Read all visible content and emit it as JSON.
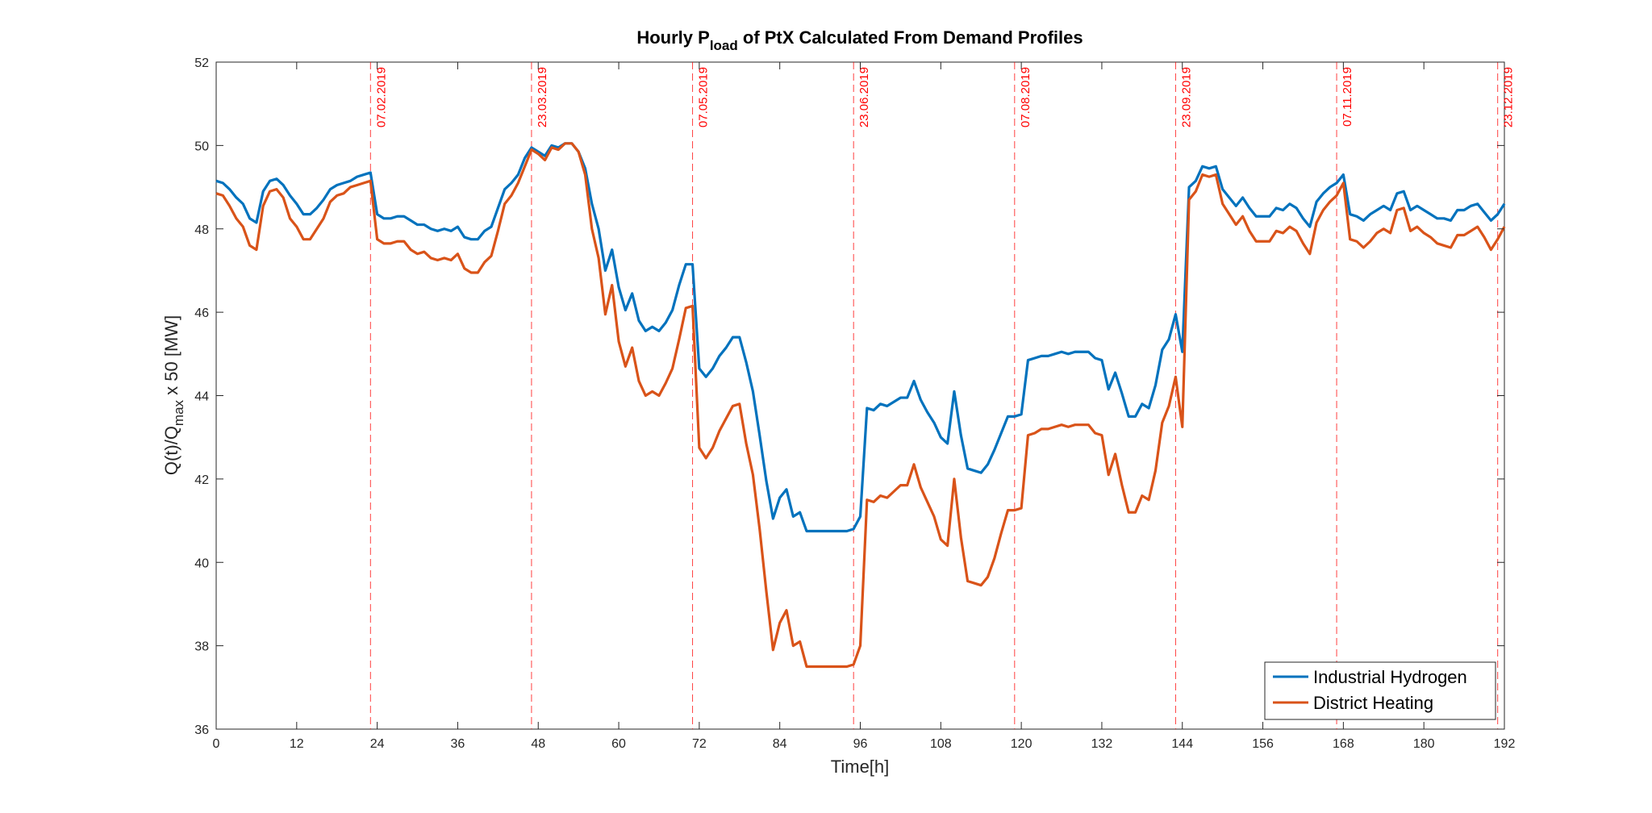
{
  "chart_data": {
    "type": "line",
    "title_main": "Hourly P",
    "title_sub": "load",
    "title_rest": " of PtX Calculated From Demand Profiles",
    "xlabel": "Time[h]",
    "ylabel_main": "Q(t)/Q",
    "ylabel_sub": "max",
    "ylabel_rest": " x 50 [MW]",
    "xlim": [
      0,
      192
    ],
    "ylim": [
      36,
      52
    ],
    "xticks": [
      0,
      12,
      24,
      36,
      48,
      60,
      72,
      84,
      96,
      108,
      120,
      132,
      144,
      156,
      168,
      180,
      192
    ],
    "yticks": [
      36,
      38,
      40,
      42,
      44,
      46,
      48,
      50,
      52
    ],
    "grid": false,
    "legend_position": "bottom-right",
    "annotations": [
      {
        "x": 23,
        "label": "07.02.2019"
      },
      {
        "x": 47,
        "label": "23.03.2019"
      },
      {
        "x": 71,
        "label": "07.05.2019"
      },
      {
        "x": 95,
        "label": "23.06.2019"
      },
      {
        "x": 119,
        "label": "07.08.2019"
      },
      {
        "x": 143,
        "label": "23.09.2019"
      },
      {
        "x": 167,
        "label": "07.11.2019"
      },
      {
        "x": 191,
        "label": "23.12.2019"
      }
    ],
    "annotation_color": "#ff0000",
    "series": [
      {
        "name": "Industrial Hydrogen",
        "color": "#0072BD",
        "x": [
          0,
          1,
          2,
          3,
          4,
          5,
          6,
          7,
          8,
          9,
          10,
          11,
          12,
          13,
          14,
          15,
          16,
          17,
          18,
          19,
          20,
          21,
          22,
          23,
          24,
          25,
          26,
          27,
          28,
          29,
          30,
          31,
          32,
          33,
          34,
          35,
          36,
          37,
          38,
          39,
          40,
          41,
          42,
          43,
          44,
          45,
          46,
          47,
          48,
          49,
          50,
          51,
          52,
          53,
          54,
          55,
          56,
          57,
          58,
          59,
          60,
          61,
          62,
          63,
          64,
          65,
          66,
          67,
          68,
          69,
          70,
          71,
          72,
          73,
          74,
          75,
          76,
          77,
          78,
          79,
          80,
          81,
          82,
          83,
          84,
          85,
          86,
          87,
          88,
          89,
          90,
          91,
          92,
          93,
          94,
          95,
          96,
          97,
          98,
          99,
          100,
          101,
          102,
          103,
          104,
          105,
          106,
          107,
          108,
          109,
          110,
          111,
          112,
          113,
          114,
          115,
          116,
          117,
          118,
          119,
          120,
          121,
          122,
          123,
          124,
          125,
          126,
          127,
          128,
          129,
          130,
          131,
          132,
          133,
          134,
          135,
          136,
          137,
          138,
          139,
          140,
          141,
          142,
          143,
          144,
          145,
          146,
          147,
          148,
          149,
          150,
          151,
          152,
          153,
          154,
          155,
          156,
          157,
          158,
          159,
          160,
          161,
          162,
          163,
          164,
          165,
          166,
          167,
          168,
          169,
          170,
          171,
          172,
          173,
          174,
          175,
          176,
          177,
          178,
          179,
          180,
          181,
          182,
          183,
          184,
          185,
          186,
          187,
          188,
          189,
          190,
          191,
          192
        ],
        "y": [
          49.15,
          49.1,
          48.95,
          48.75,
          48.6,
          48.25,
          48.15,
          48.9,
          49.15,
          49.2,
          49.05,
          48.8,
          48.6,
          48.35,
          48.35,
          48.5,
          48.7,
          48.95,
          49.05,
          49.1,
          49.15,
          49.25,
          49.3,
          49.35,
          48.35,
          48.25,
          48.25,
          48.3,
          48.3,
          48.2,
          48.1,
          48.1,
          48.0,
          47.95,
          48.0,
          47.95,
          48.05,
          47.8,
          47.75,
          47.75,
          47.95,
          48.05,
          48.5,
          48.95,
          49.1,
          49.3,
          49.7,
          49.95,
          49.85,
          49.75,
          50.0,
          49.95,
          50.05,
          50.05,
          49.85,
          49.45,
          48.6,
          48.0,
          47.0,
          47.5,
          46.6,
          46.05,
          46.45,
          45.8,
          45.55,
          45.65,
          45.55,
          45.75,
          46.05,
          46.65,
          47.15,
          47.15,
          44.65,
          44.45,
          44.65,
          44.95,
          45.15,
          45.4,
          45.4,
          44.8,
          44.1,
          43.05,
          41.95,
          41.05,
          41.55,
          41.75,
          41.1,
          41.2,
          40.75,
          40.75,
          40.75,
          40.75,
          40.75,
          40.75,
          40.75,
          40.8,
          41.1,
          43.7,
          43.65,
          43.8,
          43.75,
          43.85,
          43.95,
          43.95,
          44.35,
          43.9,
          43.6,
          43.35,
          43.0,
          42.85,
          44.1,
          43.05,
          42.25,
          42.2,
          42.15,
          42.35,
          42.7,
          43.1,
          43.5,
          43.5,
          43.55,
          44.85,
          44.9,
          44.95,
          44.95,
          45.0,
          45.05,
          45.0,
          45.05,
          45.05,
          45.05,
          44.9,
          44.85,
          44.15,
          44.55,
          44.05,
          43.5,
          43.5,
          43.8,
          43.7,
          44.25,
          45.1,
          45.35,
          45.95,
          45.05,
          49.0,
          49.15,
          49.5,
          49.45,
          49.5,
          48.95,
          48.75,
          48.55,
          48.75,
          48.5,
          48.3,
          48.3,
          48.3,
          48.5,
          48.45,
          48.6,
          48.5,
          48.25,
          48.05,
          48.65,
          48.85,
          49.0,
          49.1,
          49.3,
          48.35,
          48.3,
          48.2,
          48.35,
          48.45,
          48.55,
          48.45,
          48.85,
          48.9,
          48.45,
          48.55,
          48.45,
          48.35,
          48.25,
          48.25,
          48.2,
          48.45,
          48.45,
          48.55,
          48.6,
          48.4,
          48.2,
          48.35,
          48.6
        ]
      },
      {
        "name": "District Heating",
        "color": "#D95319",
        "x": [
          0,
          1,
          2,
          3,
          4,
          5,
          6,
          7,
          8,
          9,
          10,
          11,
          12,
          13,
          14,
          15,
          16,
          17,
          18,
          19,
          20,
          21,
          22,
          23,
          24,
          25,
          26,
          27,
          28,
          29,
          30,
          31,
          32,
          33,
          34,
          35,
          36,
          37,
          38,
          39,
          40,
          41,
          42,
          43,
          44,
          45,
          46,
          47,
          48,
          49,
          50,
          51,
          52,
          53,
          54,
          55,
          56,
          57,
          58,
          59,
          60,
          61,
          62,
          63,
          64,
          65,
          66,
          67,
          68,
          69,
          70,
          71,
          72,
          73,
          74,
          75,
          76,
          77,
          78,
          79,
          80,
          81,
          82,
          83,
          84,
          85,
          86,
          87,
          88,
          89,
          90,
          91,
          92,
          93,
          94,
          95,
          96,
          97,
          98,
          99,
          100,
          101,
          102,
          103,
          104,
          105,
          106,
          107,
          108,
          109,
          110,
          111,
          112,
          113,
          114,
          115,
          116,
          117,
          118,
          119,
          120,
          121,
          122,
          123,
          124,
          125,
          126,
          127,
          128,
          129,
          130,
          131,
          132,
          133,
          134,
          135,
          136,
          137,
          138,
          139,
          140,
          141,
          142,
          143,
          144,
          145,
          146,
          147,
          148,
          149,
          150,
          151,
          152,
          153,
          154,
          155,
          156,
          157,
          158,
          159,
          160,
          161,
          162,
          163,
          164,
          165,
          166,
          167,
          168,
          169,
          170,
          171,
          172,
          173,
          174,
          175,
          176,
          177,
          178,
          179,
          180,
          181,
          182,
          183,
          184,
          185,
          186,
          187,
          188,
          189,
          190,
          191,
          192
        ],
        "y": [
          48.85,
          48.8,
          48.55,
          48.25,
          48.05,
          47.6,
          47.5,
          48.55,
          48.9,
          48.95,
          48.75,
          48.25,
          48.05,
          47.75,
          47.75,
          48.0,
          48.25,
          48.65,
          48.8,
          48.85,
          49.0,
          49.05,
          49.1,
          49.15,
          47.75,
          47.65,
          47.65,
          47.7,
          47.7,
          47.5,
          47.4,
          47.45,
          47.3,
          47.25,
          47.3,
          47.25,
          47.4,
          47.05,
          46.95,
          46.95,
          47.2,
          47.35,
          47.95,
          48.6,
          48.8,
          49.1,
          49.5,
          49.9,
          49.8,
          49.65,
          49.95,
          49.9,
          50.05,
          50.05,
          49.85,
          49.3,
          48.0,
          47.3,
          45.95,
          46.65,
          45.3,
          44.7,
          45.15,
          44.35,
          44.0,
          44.1,
          44.0,
          44.3,
          44.65,
          45.35,
          46.1,
          46.15,
          42.75,
          42.5,
          42.75,
          43.15,
          43.45,
          43.75,
          43.8,
          42.85,
          42.1,
          40.8,
          39.3,
          37.9,
          38.55,
          38.85,
          38.0,
          38.1,
          37.5,
          37.5,
          37.5,
          37.5,
          37.5,
          37.5,
          37.5,
          37.55,
          38.0,
          41.5,
          41.45,
          41.6,
          41.55,
          41.7,
          41.85,
          41.85,
          42.35,
          41.8,
          41.45,
          41.1,
          40.55,
          40.4,
          42.0,
          40.6,
          39.55,
          39.5,
          39.45,
          39.65,
          40.1,
          40.7,
          41.25,
          41.25,
          41.3,
          43.05,
          43.1,
          43.2,
          43.2,
          43.25,
          43.3,
          43.25,
          43.3,
          43.3,
          43.3,
          43.1,
          43.05,
          42.1,
          42.6,
          41.85,
          41.2,
          41.2,
          41.6,
          41.5,
          42.2,
          43.35,
          43.75,
          44.45,
          43.25,
          48.7,
          48.9,
          49.3,
          49.25,
          49.3,
          48.6,
          48.35,
          48.1,
          48.3,
          47.95,
          47.7,
          47.7,
          47.7,
          47.95,
          47.9,
          48.05,
          47.95,
          47.65,
          47.4,
          48.15,
          48.45,
          48.65,
          48.8,
          49.1,
          47.75,
          47.7,
          47.55,
          47.7,
          47.9,
          48.0,
          47.9,
          48.45,
          48.5,
          47.95,
          48.05,
          47.9,
          47.8,
          47.65,
          47.6,
          47.55,
          47.85,
          47.85,
          47.95,
          48.05,
          47.8,
          47.5,
          47.75,
          48.05
        ]
      }
    ]
  }
}
